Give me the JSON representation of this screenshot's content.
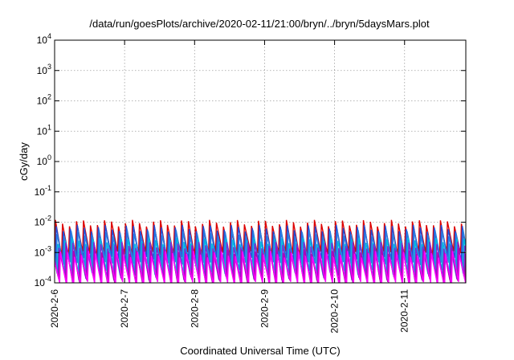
{
  "chart_data": {
    "type": "line",
    "title": "/data/run/goesPlots/archive/2020-02-11/21:00/bryn/../bryn/5daysMars.plot",
    "xlabel": "Coordinated Universal Time (UTC)",
    "ylabel": "cGy/day",
    "y_scale": "log",
    "ylim": [
      0.0001,
      10000
    ],
    "x_range_days": [
      0,
      5.875
    ],
    "grid": true,
    "y_ticks": [
      {
        "value": 0.0001,
        "base": "10",
        "exp": "-4"
      },
      {
        "value": 0.001,
        "base": "10",
        "exp": "-3"
      },
      {
        "value": 0.01,
        "base": "10",
        "exp": "-2"
      },
      {
        "value": 0.1,
        "base": "10",
        "exp": "-1"
      },
      {
        "value": 1,
        "base": "10",
        "exp": "0"
      },
      {
        "value": 10,
        "base": "10",
        "exp": "1"
      },
      {
        "value": 100,
        "base": "10",
        "exp": "2"
      },
      {
        "value": 1000,
        "base": "10",
        "exp": "3"
      },
      {
        "value": 10000,
        "base": "10",
        "exp": "4"
      }
    ],
    "x_ticks": [
      {
        "day": 0,
        "label": "2020-2-6"
      },
      {
        "day": 1,
        "label": "2020-2-7"
      },
      {
        "day": 2,
        "label": "2020-2-8"
      },
      {
        "day": 3,
        "label": "2020-2-9"
      },
      {
        "day": 4,
        "label": "2020-2-10"
      },
      {
        "day": 5,
        "label": "2020-2-11"
      }
    ],
    "series": [
      {
        "color": "#dd0000",
        "period_days": 0.1,
        "peak": 0.0095,
        "trough": 0.0009,
        "phase": 0.0
      },
      {
        "color": "#1f4fd8",
        "period_days": 0.1,
        "peak": 0.0065,
        "trough": 0.0006,
        "phase": 0.012
      },
      {
        "color": "#2a7de1",
        "period_days": 0.1,
        "peak": 0.0045,
        "trough": 0.0004,
        "phase": 0.024
      },
      {
        "color": "#00b7e0",
        "period_days": 0.1,
        "peak": 0.0025,
        "trough": 0.00022,
        "phase": 0.036
      },
      {
        "color": "#7a2bd4",
        "period_days": 0.1,
        "peak": 0.0018,
        "trough": 0.00015,
        "phase": 0.048
      },
      {
        "color": "#b400b4",
        "period_days": 0.1,
        "peak": 0.0012,
        "trough": 0.00011,
        "phase": 0.06
      },
      {
        "color": "#ff00ff",
        "period_days": 0.1,
        "peak": 0.0009,
        "trough": 9e-05,
        "phase": 0.072
      }
    ]
  }
}
